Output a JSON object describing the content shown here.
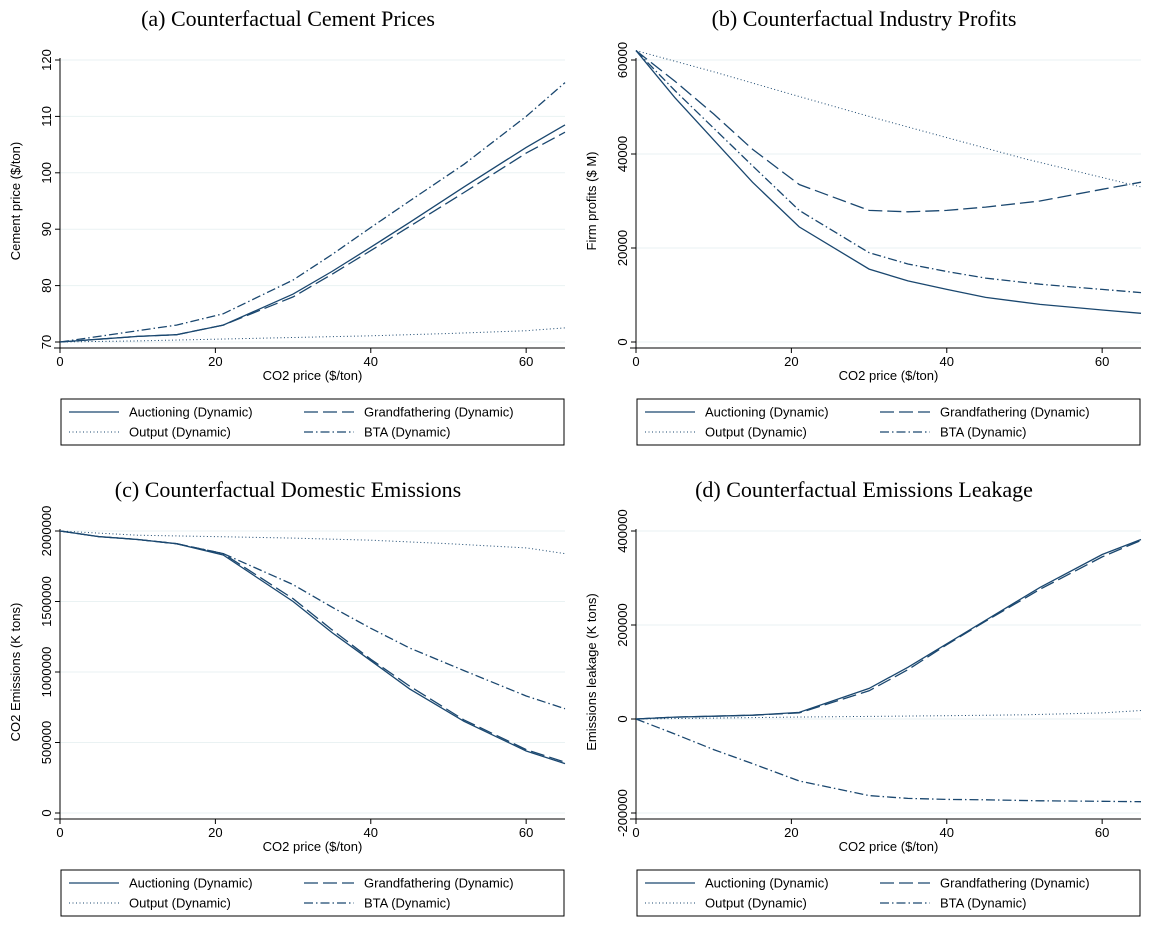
{
  "chart_data": [
    {
      "type": "line",
      "title": "(a) Counterfactual Cement Prices",
      "xlabel": "CO2 price ($/ton)",
      "ylabel": "Cement price ($/ton)",
      "xlim": [
        0,
        65
      ],
      "ylim": [
        70,
        120
      ],
      "xticks": [
        0,
        20,
        40,
        60
      ],
      "yticks": [
        70,
        80,
        90,
        100,
        110,
        120
      ],
      "grid": true,
      "legend_position": "bottom",
      "series": [
        {
          "name": "Auctioning (Dynamic)",
          "style": "solid",
          "x": [
            0,
            5,
            10,
            15,
            21,
            30,
            35,
            40,
            45,
            52,
            60,
            65
          ],
          "y": [
            70,
            70.5,
            71,
            71.3,
            73,
            78.5,
            82.5,
            86.8,
            91.2,
            97.5,
            104.5,
            108.5
          ]
        },
        {
          "name": "Grandfathering (Dynamic)",
          "style": "longdash",
          "x": [
            0,
            5,
            10,
            15,
            21,
            30,
            35,
            40,
            45,
            52,
            60,
            65
          ],
          "y": [
            70,
            70.5,
            71,
            71.3,
            73,
            78,
            82,
            86.2,
            90.5,
            96.5,
            103.5,
            107.2
          ]
        },
        {
          "name": "Output (Dynamic)",
          "style": "dot",
          "x": [
            0,
            10,
            20,
            30,
            40,
            50,
            60,
            65
          ],
          "y": [
            70,
            70.2,
            70.5,
            70.8,
            71.1,
            71.5,
            72,
            72.5
          ]
        },
        {
          "name": "BTA (Dynamic)",
          "style": "dashdot",
          "x": [
            0,
            5,
            10,
            15,
            21,
            30,
            35,
            40,
            45,
            52,
            60,
            65
          ],
          "y": [
            70,
            71,
            72,
            73,
            75,
            81,
            85.5,
            90.3,
            95,
            101.5,
            110,
            116
          ]
        }
      ]
    },
    {
      "type": "line",
      "title": "(b) Counterfactual Industry Profits",
      "xlabel": "CO2 price ($/ton)",
      "ylabel": "Firm profits ($ M)",
      "xlim": [
        0,
        65
      ],
      "ylim": [
        0,
        60000
      ],
      "xticks": [
        0,
        20,
        40,
        60
      ],
      "yticks": [
        0,
        20000,
        40000,
        60000
      ],
      "grid": true,
      "legend_position": "bottom",
      "series": [
        {
          "name": "Auctioning (Dynamic)",
          "style": "solid",
          "x": [
            0,
            5,
            10,
            15,
            21,
            30,
            35,
            40,
            45,
            52,
            60,
            65
          ],
          "y": [
            62000,
            52000,
            43000,
            34000,
            24500,
            15500,
            13000,
            11200,
            9500,
            8000,
            6800,
            6100
          ]
        },
        {
          "name": "Grandfathering (Dynamic)",
          "style": "longdash",
          "x": [
            0,
            5,
            10,
            15,
            21,
            30,
            35,
            40,
            45,
            52,
            60,
            65
          ],
          "y": [
            62000,
            55500,
            48500,
            41000,
            33500,
            28000,
            27700,
            28000,
            28700,
            30000,
            32500,
            34000
          ]
        },
        {
          "name": "Output (Dynamic)",
          "style": "dot",
          "x": [
            0,
            10,
            20,
            30,
            40,
            50,
            60,
            65
          ],
          "y": [
            62000,
            57500,
            52700,
            48000,
            43500,
            39000,
            35000,
            33000
          ]
        },
        {
          "name": "BTA (Dynamic)",
          "style": "dashdot",
          "x": [
            0,
            5,
            10,
            15,
            21,
            30,
            35,
            40,
            45,
            52,
            60,
            65
          ],
          "y": [
            62000,
            53500,
            45500,
            37500,
            28000,
            19000,
            16600,
            15000,
            13600,
            12300,
            11200,
            10500
          ]
        }
      ]
    },
    {
      "type": "line",
      "title": "(c) Counterfactual Domestic Emissions",
      "xlabel": "CO2 price ($/ton)",
      "ylabel": "CO2 Emissions (K tons)",
      "xlim": [
        0,
        65
      ],
      "ylim": [
        0,
        2000000
      ],
      "xticks": [
        0,
        20,
        40,
        60
      ],
      "yticks": [
        0,
        500000,
        1000000,
        1500000,
        2000000
      ],
      "grid": true,
      "legend_position": "bottom",
      "series": [
        {
          "name": "Auctioning (Dynamic)",
          "style": "solid",
          "x": [
            0,
            5,
            10,
            15,
            21,
            30,
            35,
            40,
            45,
            52,
            60,
            65
          ],
          "y": [
            2000000,
            1960000,
            1940000,
            1910000,
            1830000,
            1500000,
            1280000,
            1080000,
            880000,
            650000,
            440000,
            350000
          ]
        },
        {
          "name": "Grandfathering (Dynamic)",
          "style": "longdash",
          "x": [
            0,
            5,
            10,
            15,
            21,
            30,
            35,
            40,
            45,
            52,
            60,
            65
          ],
          "y": [
            2000000,
            1960000,
            1940000,
            1910000,
            1840000,
            1520000,
            1300000,
            1090000,
            900000,
            660000,
            450000,
            360000
          ]
        },
        {
          "name": "Output (Dynamic)",
          "style": "dot",
          "x": [
            0,
            10,
            20,
            30,
            40,
            50,
            60,
            65
          ],
          "y": [
            2000000,
            1970000,
            1960000,
            1950000,
            1935000,
            1910000,
            1880000,
            1840000
          ]
        },
        {
          "name": "BTA (Dynamic)",
          "style": "dashdot",
          "x": [
            0,
            5,
            10,
            15,
            21,
            30,
            35,
            40,
            45,
            52,
            60,
            65
          ],
          "y": [
            2000000,
            1960000,
            1940000,
            1910000,
            1840000,
            1620000,
            1460000,
            1310000,
            1170000,
            1010000,
            830000,
            740000
          ]
        }
      ]
    },
    {
      "type": "line",
      "title": "(d) Counterfactual Emissions Leakage",
      "xlabel": "CO2 price ($/ton)",
      "ylabel": "Emissions leakage (K tons)",
      "xlim": [
        0,
        65
      ],
      "ylim": [
        -200000,
        400000
      ],
      "xticks": [
        0,
        20,
        40,
        60
      ],
      "yticks": [
        -200000,
        0,
        200000,
        400000
      ],
      "grid": true,
      "legend_position": "bottom",
      "series": [
        {
          "name": "Auctioning (Dynamic)",
          "style": "solid",
          "x": [
            0,
            5,
            10,
            15,
            21,
            30,
            35,
            40,
            45,
            52,
            60,
            65
          ],
          "y": [
            0,
            4000,
            6000,
            8000,
            14000,
            65000,
            110000,
            160000,
            210000,
            280000,
            350000,
            382000
          ]
        },
        {
          "name": "Grandfathering (Dynamic)",
          "style": "longdash",
          "x": [
            0,
            5,
            10,
            15,
            21,
            30,
            35,
            40,
            45,
            52,
            60,
            65
          ],
          "y": [
            0,
            4000,
            6000,
            8000,
            13000,
            60000,
            105000,
            158000,
            208000,
            276000,
            345000,
            380000
          ]
        },
        {
          "name": "Output (Dynamic)",
          "style": "dot",
          "x": [
            0,
            10,
            20,
            30,
            40,
            50,
            60,
            65
          ],
          "y": [
            0,
            2000,
            4000,
            5500,
            7000,
            9000,
            13000,
            18000
          ]
        },
        {
          "name": "BTA (Dynamic)",
          "style": "dashdot",
          "x": [
            0,
            5,
            10,
            15,
            21,
            30,
            35,
            40,
            45,
            52,
            60,
            65
          ],
          "y": [
            0,
            -32000,
            -65000,
            -95000,
            -132000,
            -163000,
            -169000,
            -171000,
            -172000,
            -174000,
            -175000,
            -176000
          ]
        }
      ]
    }
  ]
}
